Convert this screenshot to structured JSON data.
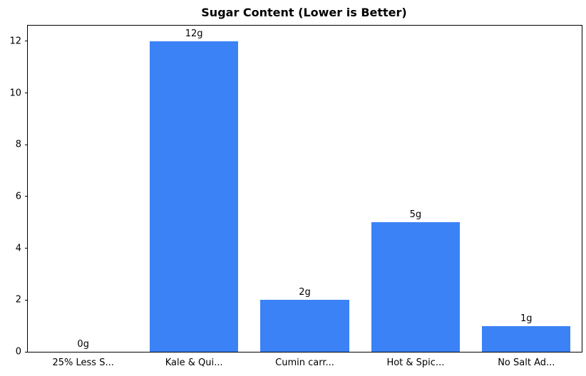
{
  "chart_data": {
    "type": "bar",
    "title": "Sugar Content (Lower is Better)",
    "categories": [
      "25% Less S...",
      "Kale & Qui...",
      "Cumin carr...",
      "Hot & Spic...",
      "No Salt Ad..."
    ],
    "values": [
      0,
      12,
      2,
      5,
      1
    ],
    "bar_labels": [
      "0g",
      "12g",
      "2g",
      "5g",
      "1g"
    ],
    "xlabel": "",
    "ylabel": "",
    "yticks": [
      0,
      2,
      4,
      6,
      8,
      10,
      12
    ],
    "ylim": [
      0,
      12.6
    ],
    "grid": false,
    "legend": "none",
    "bar_color": "#3b82f6",
    "spine_color": "#000000",
    "text_color": "#000000"
  }
}
